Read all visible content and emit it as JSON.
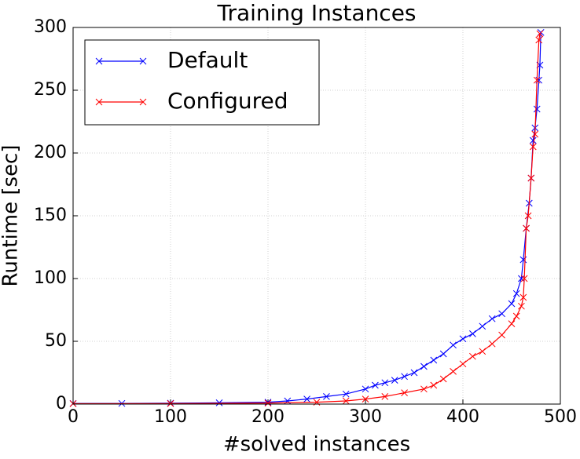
{
  "chart_data": {
    "type": "line",
    "title": "Training Instances",
    "x_label": "#solved instances",
    "y_label": "Runtime [sec]",
    "xlim": [
      0,
      500
    ],
    "ylim": [
      0,
      300
    ],
    "xticks": [
      0,
      100,
      200,
      300,
      400,
      500
    ],
    "yticks": [
      0,
      50,
      100,
      150,
      200,
      250,
      300
    ],
    "grid": true,
    "legend": "upper left",
    "series": [
      {
        "name": "Default",
        "color": "#0000ff",
        "x": [
          0,
          50,
          100,
          150,
          200,
          220,
          240,
          260,
          280,
          300,
          310,
          320,
          330,
          340,
          350,
          360,
          370,
          380,
          390,
          400,
          410,
          420,
          430,
          440,
          450,
          455,
          460,
          462,
          465,
          468,
          470,
          472,
          474,
          476,
          478,
          479,
          480
        ],
        "values": [
          0.5,
          0.5,
          0.7,
          1,
          1.5,
          2.5,
          4,
          6,
          8,
          12,
          15,
          17,
          19,
          22,
          25,
          30,
          35,
          40,
          47,
          52,
          56,
          62,
          68,
          72,
          80,
          88,
          100,
          115,
          140,
          160,
          180,
          210,
          220,
          235,
          258,
          270,
          296
        ]
      },
      {
        "name": "Configured",
        "color": "#ff0000",
        "x": [
          0,
          100,
          200,
          250,
          280,
          300,
          320,
          340,
          360,
          370,
          380,
          390,
          400,
          410,
          420,
          430,
          440,
          450,
          455,
          460,
          462,
          463,
          465,
          467,
          470,
          472,
          474,
          476,
          478,
          479
        ],
        "values": [
          0.3,
          0.4,
          0.8,
          1.5,
          2.5,
          4,
          6,
          9,
          12,
          15,
          20,
          26,
          32,
          38,
          42,
          48,
          55,
          64,
          70,
          78,
          85,
          100,
          140,
          150,
          180,
          205,
          215,
          258,
          290,
          295
        ]
      }
    ]
  }
}
